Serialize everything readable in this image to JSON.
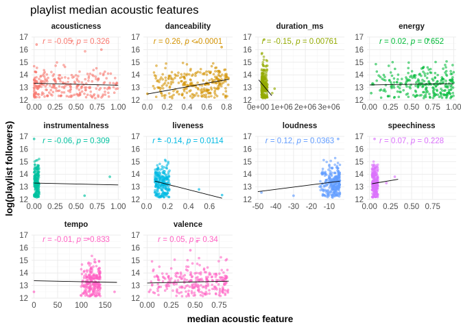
{
  "chart_data": {
    "type": "scatter",
    "title": "playlist median acoustic features",
    "xlabel": "median acoustic feature",
    "ylabel": "log(playlist followers)",
    "ylim": [
      12,
      17
    ],
    "yticks": [
      "12",
      "13",
      "14",
      "15",
      "16",
      "17"
    ],
    "grid": true,
    "legend": "none",
    "facets": [
      {
        "name": "acousticness",
        "color": "#F8766D",
        "xlim": [
          -0.03,
          1.03
        ],
        "xticks": [
          0,
          0.25,
          0.5,
          0.75,
          1
        ],
        "xtick_labels": [
          "0.00",
          "0.25",
          "0.50",
          "0.75",
          "1.00"
        ],
        "stat_r": "-0.05",
        "stat_p": "= 0.326",
        "fit": [
          [
            0.0,
            13.33
          ],
          [
            1.0,
            13.18
          ]
        ],
        "points": {
          "x_min": 0.0,
          "x_max": 1.0,
          "skew": 1.6,
          "y_mean": 13.2,
          "y_sd": 0.7,
          "extremes": [
            [
              0.45,
              16.7
            ],
            [
              0.8,
              16.0
            ],
            [
              0.03,
              16.4
            ]
          ],
          "n": 260
        }
      },
      {
        "name": "danceability",
        "color": "#D39200",
        "xlim": [
          -0.04,
          0.86
        ],
        "xticks": [
          0,
          0.2,
          0.4,
          0.6,
          0.8
        ],
        "xtick_labels": [
          "0.0",
          "0.2",
          "0.4",
          "0.6",
          "0.8"
        ],
        "stat_r": "0.26",
        "stat_p": "< 0.0001",
        "fit": [
          [
            0.0,
            12.48
          ],
          [
            0.82,
            13.65
          ]
        ],
        "points": {
          "x_min": 0.05,
          "x_max": 0.82,
          "skew": 0.7,
          "y_mean": 13.25,
          "y_sd": 0.75,
          "extremes": [
            [
              0.0,
              12.5
            ],
            [
              0.5,
              16.6
            ],
            [
              0.75,
              16.2
            ]
          ],
          "n": 260
        }
      },
      {
        "name": "duration_ms",
        "color": "#93AA00",
        "xlim": [
          -120000,
          3650000
        ],
        "xticks": [
          0,
          1000000,
          2000000,
          3000000
        ],
        "xtick_labels": [
          "0e+00",
          "1e+06",
          "2e+06",
          "3e+06"
        ],
        "stat_r": "-0.15",
        "stat_p": "= 0.00761",
        "fit": [
          [
            30000,
            13.6
          ],
          [
            580000,
            12.35
          ]
        ],
        "points": {
          "x_min": 150000,
          "x_max": 400000,
          "skew": 1.5,
          "y_mean": 13.2,
          "y_sd": 0.8,
          "extremes": [
            [
              260000,
              16.8
            ],
            [
              700000,
              12.9
            ],
            [
              600000,
              12.55
            ]
          ],
          "n": 220
        }
      },
      {
        "name": "energy",
        "color": "#00BA38",
        "xlim": [
          -0.03,
          1.03
        ],
        "xticks": [
          0,
          0.25,
          0.5,
          0.75,
          1
        ],
        "xtick_labels": [
          "0.00",
          "0.25",
          "0.50",
          "0.75",
          "1.00"
        ],
        "stat_r": "0.02",
        "stat_p": "= 0.652",
        "fit": [
          [
            0.0,
            13.2
          ],
          [
            1.0,
            13.3
          ]
        ],
        "points": {
          "x_min": 0.0,
          "x_max": 1.0,
          "skew": 0.6,
          "y_mean": 13.25,
          "y_sd": 0.75,
          "extremes": [
            [
              0.7,
              16.8
            ],
            [
              0.02,
              12.55
            ],
            [
              0.72,
              12.2
            ]
          ],
          "n": 260
        }
      },
      {
        "name": "instrumentalness",
        "color": "#00C19F",
        "xlim": [
          -0.03,
          1.03
        ],
        "xticks": [
          0,
          0.25,
          0.5,
          0.75,
          1
        ],
        "xtick_labels": [
          "0.00",
          "0.25",
          "0.50",
          "0.75",
          "1.00"
        ],
        "stat_r": "-0.06",
        "stat_p": "= 0.309",
        "fit": [
          [
            0.0,
            13.3
          ],
          [
            1.0,
            13.15
          ]
        ],
        "points": {
          "x_min": 0.0,
          "x_max": 0.06,
          "skew": 1.0,
          "y_mean": 13.3,
          "y_sd": 0.8,
          "extremes": [
            [
              0.0,
              16.8
            ],
            [
              0.9,
              13.8
            ],
            [
              0.6,
              12.3
            ]
          ],
          "n": 210
        }
      },
      {
        "name": "liveness",
        "color": "#00B9E3",
        "xlim": [
          -0.03,
          0.82
        ],
        "xticks": [
          0,
          0.2,
          0.4,
          0.6
        ],
        "xtick_labels": [
          "0.0",
          "0.2",
          "0.4",
          "0.6"
        ],
        "stat_r": "-0.14",
        "stat_p": "= 0.0114",
        "fit": [
          [
            0.08,
            13.45
          ],
          [
            0.72,
            12.1
          ]
        ],
        "points": {
          "x_min": 0.08,
          "x_max": 0.22,
          "skew": 1.3,
          "y_mean": 13.3,
          "y_sd": 0.7,
          "extremes": [
            [
              0.12,
              16.8
            ],
            [
              0.72,
              12.35
            ],
            [
              0.5,
              12.8
            ]
          ],
          "n": 220
        }
      },
      {
        "name": "loudness",
        "color": "#619CFF",
        "xlim": [
          -51.5,
          -1.5
        ],
        "xticks": [
          -50,
          -40,
          -30,
          -20,
          -10
        ],
        "xtick_labels": [
          "-50",
          "-40",
          "-30",
          "-20",
          "-10"
        ],
        "stat_r": "0.12",
        "stat_p": "= 0.0363",
        "fit": [
          [
            -50,
            12.62
          ],
          [
            -4,
            13.45
          ]
        ],
        "points": {
          "x_min": -16.0,
          "x_max": -4.0,
          "skew": 0.5,
          "y_mean": 13.25,
          "y_sd": 0.75,
          "extremes": [
            [
              -48,
              12.55
            ],
            [
              -30,
              12.3
            ],
            [
              -5,
              16.8
            ]
          ],
          "n": 260
        }
      },
      {
        "name": "speechiness",
        "color": "#DB72FB",
        "xlim": [
          -0.03,
          1.03
        ],
        "xticks": [
          0,
          0.25,
          0.5,
          0.75
        ],
        "xtick_labels": [
          "0.00",
          "0.25",
          "0.50",
          "0.75"
        ],
        "stat_r": "0.07",
        "stat_p": "= 0.228",
        "fit": [
          [
            0.03,
            13.25
          ],
          [
            0.34,
            13.6
          ]
        ],
        "points": {
          "x_min": 0.03,
          "x_max": 0.1,
          "skew": 1.2,
          "y_mean": 13.3,
          "y_sd": 0.75,
          "extremes": [
            [
              0.06,
              16.8
            ],
            [
              0.3,
              13.8
            ],
            [
              0.2,
              13.3
            ]
          ],
          "n": 220
        }
      },
      {
        "name": "tempo",
        "color": "#FF61C3",
        "xlim": [
          -5,
          183
        ],
        "xticks": [
          0,
          50,
          100,
          150
        ],
        "xtick_labels": [
          "0",
          "50",
          "100",
          "150"
        ],
        "stat_r": "-0.01",
        "stat_p": "= 0.833",
        "fit": [
          [
            0,
            13.38
          ],
          [
            175,
            13.25
          ]
        ],
        "points": {
          "x_min": 95,
          "x_max": 140,
          "skew": 0.5,
          "y_mean": 13.25,
          "y_sd": 0.75,
          "extremes": [
            [
              0,
              12.5
            ],
            [
              115,
              16.7
            ],
            [
              170,
              12.5
            ]
          ],
          "n": 240
        }
      },
      {
        "name": "valence",
        "color": "#FF61C3",
        "xlim": [
          -0.04,
          0.89
        ],
        "xticks": [
          0,
          0.25,
          0.5,
          0.75
        ],
        "xtick_labels": [
          "0.00",
          "0.25",
          "0.50",
          "0.75"
        ],
        "stat_r": "0.05",
        "stat_p": "= 0.34",
        "fit": [
          [
            0.0,
            13.2
          ],
          [
            0.85,
            13.35
          ]
        ],
        "points": {
          "x_min": 0.0,
          "x_max": 0.85,
          "skew": 0.7,
          "y_mean": 13.25,
          "y_sd": 0.7,
          "extremes": [
            [
              0.52,
              16.5
            ],
            [
              0.45,
              15.8
            ],
            [
              0.02,
              12.5
            ]
          ],
          "n": 260
        }
      }
    ]
  }
}
